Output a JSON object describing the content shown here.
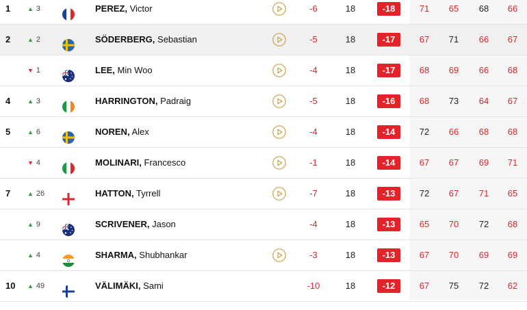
{
  "leaderboard": {
    "colors": {
      "under_par": "#d8262c",
      "total_badge": "#e3222a",
      "up": "#2e9e3a",
      "down": "#d8262c"
    },
    "rows": [
      {
        "pos": "1",
        "move": "3",
        "dir": "up",
        "flag": "france-flag",
        "last": "PEREZ,",
        "first": "Victor",
        "play": true,
        "today": "-6",
        "thru": "18",
        "total": "-18",
        "rounds": [
          "71",
          "65",
          "68",
          "66"
        ],
        "under": [
          true,
          true,
          false,
          true
        ],
        "highlight": false
      },
      {
        "pos": "2",
        "move": "2",
        "dir": "up",
        "flag": "sweden-flag",
        "last": "SÖDERBERG,",
        "first": "Sebastian",
        "play": true,
        "today": "-5",
        "thru": "18",
        "total": "-17",
        "rounds": [
          "67",
          "71",
          "66",
          "67"
        ],
        "under": [
          true,
          false,
          true,
          true
        ],
        "highlight": true
      },
      {
        "pos": "",
        "move": "1",
        "dir": "down",
        "flag": "australia-flag",
        "last": "LEE,",
        "first": "Min Woo",
        "play": true,
        "today": "-4",
        "thru": "18",
        "total": "-17",
        "rounds": [
          "68",
          "69",
          "66",
          "68"
        ],
        "under": [
          true,
          true,
          true,
          true
        ],
        "highlight": false
      },
      {
        "pos": "4",
        "move": "3",
        "dir": "up",
        "flag": "ireland-flag",
        "last": "HARRINGTON,",
        "first": "Padraig",
        "play": true,
        "today": "-5",
        "thru": "18",
        "total": "-16",
        "rounds": [
          "68",
          "73",
          "64",
          "67"
        ],
        "under": [
          true,
          false,
          true,
          true
        ],
        "highlight": false
      },
      {
        "pos": "5",
        "move": "6",
        "dir": "up",
        "flag": "sweden-flag",
        "last": "NOREN,",
        "first": "Alex",
        "play": true,
        "today": "-4",
        "thru": "18",
        "total": "-14",
        "rounds": [
          "72",
          "66",
          "68",
          "68"
        ],
        "under": [
          false,
          true,
          true,
          true
        ],
        "highlight": false
      },
      {
        "pos": "",
        "move": "4",
        "dir": "down",
        "flag": "italy-flag",
        "last": "MOLINARI,",
        "first": "Francesco",
        "play": true,
        "today": "-1",
        "thru": "18",
        "total": "-14",
        "rounds": [
          "67",
          "67",
          "69",
          "71"
        ],
        "under": [
          true,
          true,
          true,
          true
        ],
        "highlight": false
      },
      {
        "pos": "7",
        "move": "26",
        "dir": "up",
        "flag": "england-flag",
        "last": "HATTON,",
        "first": "Tyrrell",
        "play": true,
        "today": "-7",
        "thru": "18",
        "total": "-13",
        "rounds": [
          "72",
          "67",
          "71",
          "65"
        ],
        "under": [
          false,
          true,
          true,
          true
        ],
        "highlight": false
      },
      {
        "pos": "",
        "move": "9",
        "dir": "up",
        "flag": "australia-flag",
        "last": "SCRIVENER,",
        "first": "Jason",
        "play": false,
        "today": "-4",
        "thru": "18",
        "total": "-13",
        "rounds": [
          "65",
          "70",
          "72",
          "68"
        ],
        "under": [
          true,
          true,
          false,
          true
        ],
        "highlight": false
      },
      {
        "pos": "",
        "move": "4",
        "dir": "up",
        "flag": "india-flag",
        "last": "SHARMA,",
        "first": "Shubhankar",
        "play": true,
        "today": "-3",
        "thru": "18",
        "total": "-13",
        "rounds": [
          "67",
          "70",
          "69",
          "69"
        ],
        "under": [
          true,
          true,
          true,
          true
        ],
        "highlight": false
      },
      {
        "pos": "10",
        "move": "49",
        "dir": "up",
        "flag": "finland-flag",
        "last": "VÄLIMÄKI,",
        "first": "Sami",
        "play": false,
        "today": "-10",
        "thru": "18",
        "total": "-12",
        "rounds": [
          "67",
          "75",
          "72",
          "62"
        ],
        "under": [
          true,
          false,
          false,
          true
        ],
        "highlight": false
      }
    ]
  }
}
